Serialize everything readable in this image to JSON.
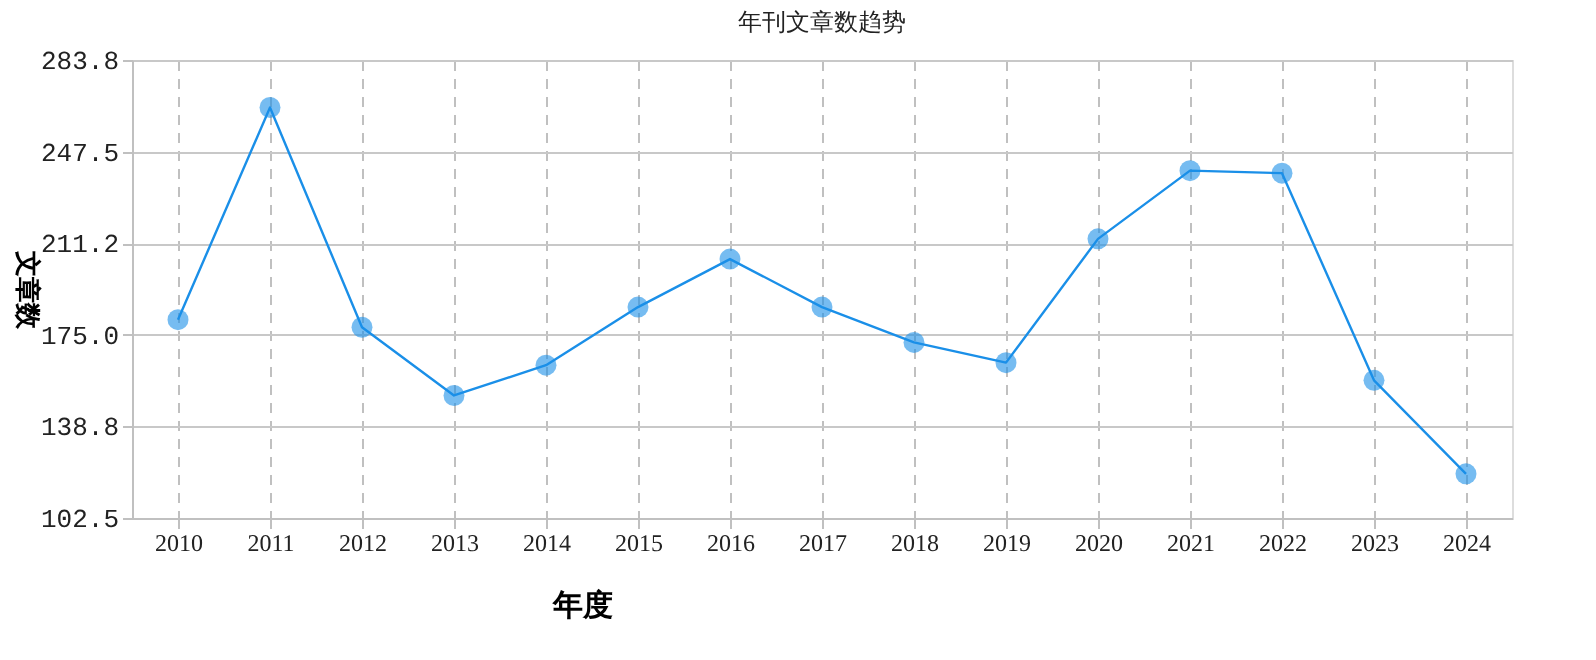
{
  "chart_data": {
    "type": "line",
    "title": "年刊文章数趋势",
    "xlabel": "年度",
    "ylabel": "文章数",
    "categories": [
      "2010",
      "2011",
      "2012",
      "2013",
      "2014",
      "2015",
      "2016",
      "2017",
      "2018",
      "2019",
      "2020",
      "2021",
      "2022",
      "2023",
      "2024"
    ],
    "series": [
      {
        "color": "#1a8fe8",
        "values": [
          181,
          265,
          178,
          151,
          163,
          186,
          205,
          186,
          172,
          164,
          213,
          240,
          239,
          157,
          120
        ]
      }
    ],
    "ylim": [
      102.5,
      283.8
    ],
    "yticks": [
      102.5,
      138.8,
      {
        "value": 175,
        "label": "175.0"
      },
      211.2,
      247.5,
      283.8
    ],
    "grid": true,
    "marker": "circle",
    "line_style": "solid"
  }
}
